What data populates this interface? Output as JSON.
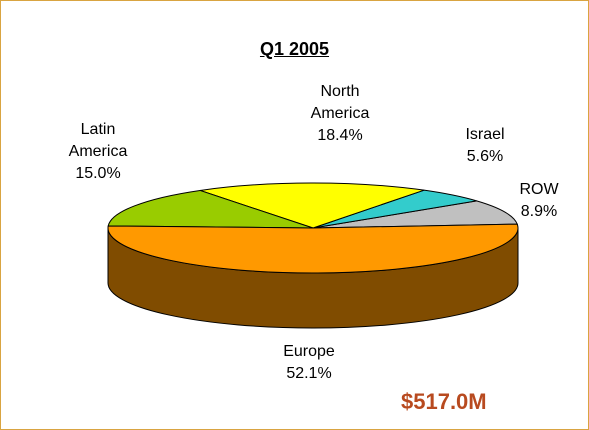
{
  "chart_data": {
    "type": "pie3d",
    "title": "Q1 2005",
    "categories": [
      "ROW",
      "Israel",
      "North America",
      "Latin America",
      "Europe"
    ],
    "values": [
      8.9,
      5.6,
      18.4,
      15.0,
      52.1
    ],
    "value_labels": [
      "8.9%",
      "5.6%",
      "18.4%",
      "15.0%",
      "52.1%"
    ],
    "colors": [
      "#c0c0c0",
      "#33cccc",
      "#ffff00",
      "#99cc00",
      "#ff9900"
    ],
    "side_color": "#804c00",
    "annotation": "$517.0M"
  }
}
